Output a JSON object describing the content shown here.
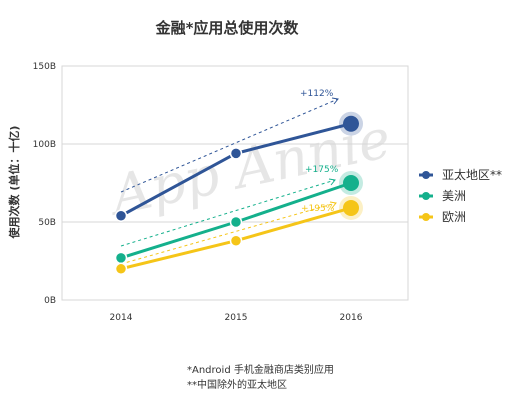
{
  "chart_data": {
    "type": "line",
    "title": "金融*应用总使用次数",
    "ylabel": "使用次数 (单位：十亿)",
    "xlabel": "",
    "categories": [
      "2014",
      "2015",
      "2016"
    ],
    "ylim": [
      0,
      150
    ],
    "y_ticks": [
      "0B",
      "50B",
      "100B",
      "150B"
    ],
    "y_tick_values": [
      0,
      50,
      100,
      150
    ],
    "grid": "horizontal",
    "legend_position": "right",
    "series": [
      {
        "name": "亚太地区**",
        "color": "#2f5597",
        "values": [
          54,
          94,
          113
        ],
        "growth": "+112%"
      },
      {
        "name": "美洲",
        "color": "#14b08c",
        "values": [
          27,
          50,
          75
        ],
        "growth": "+175%"
      },
      {
        "name": "欧洲",
        "color": "#f5c518",
        "values": [
          20,
          38,
          59
        ],
        "growth": "+195%"
      }
    ],
    "watermark": "App Annie",
    "footnotes": [
      "*Android 手机金融商店类别应用",
      "**中国除外的亚太地区"
    ]
  }
}
